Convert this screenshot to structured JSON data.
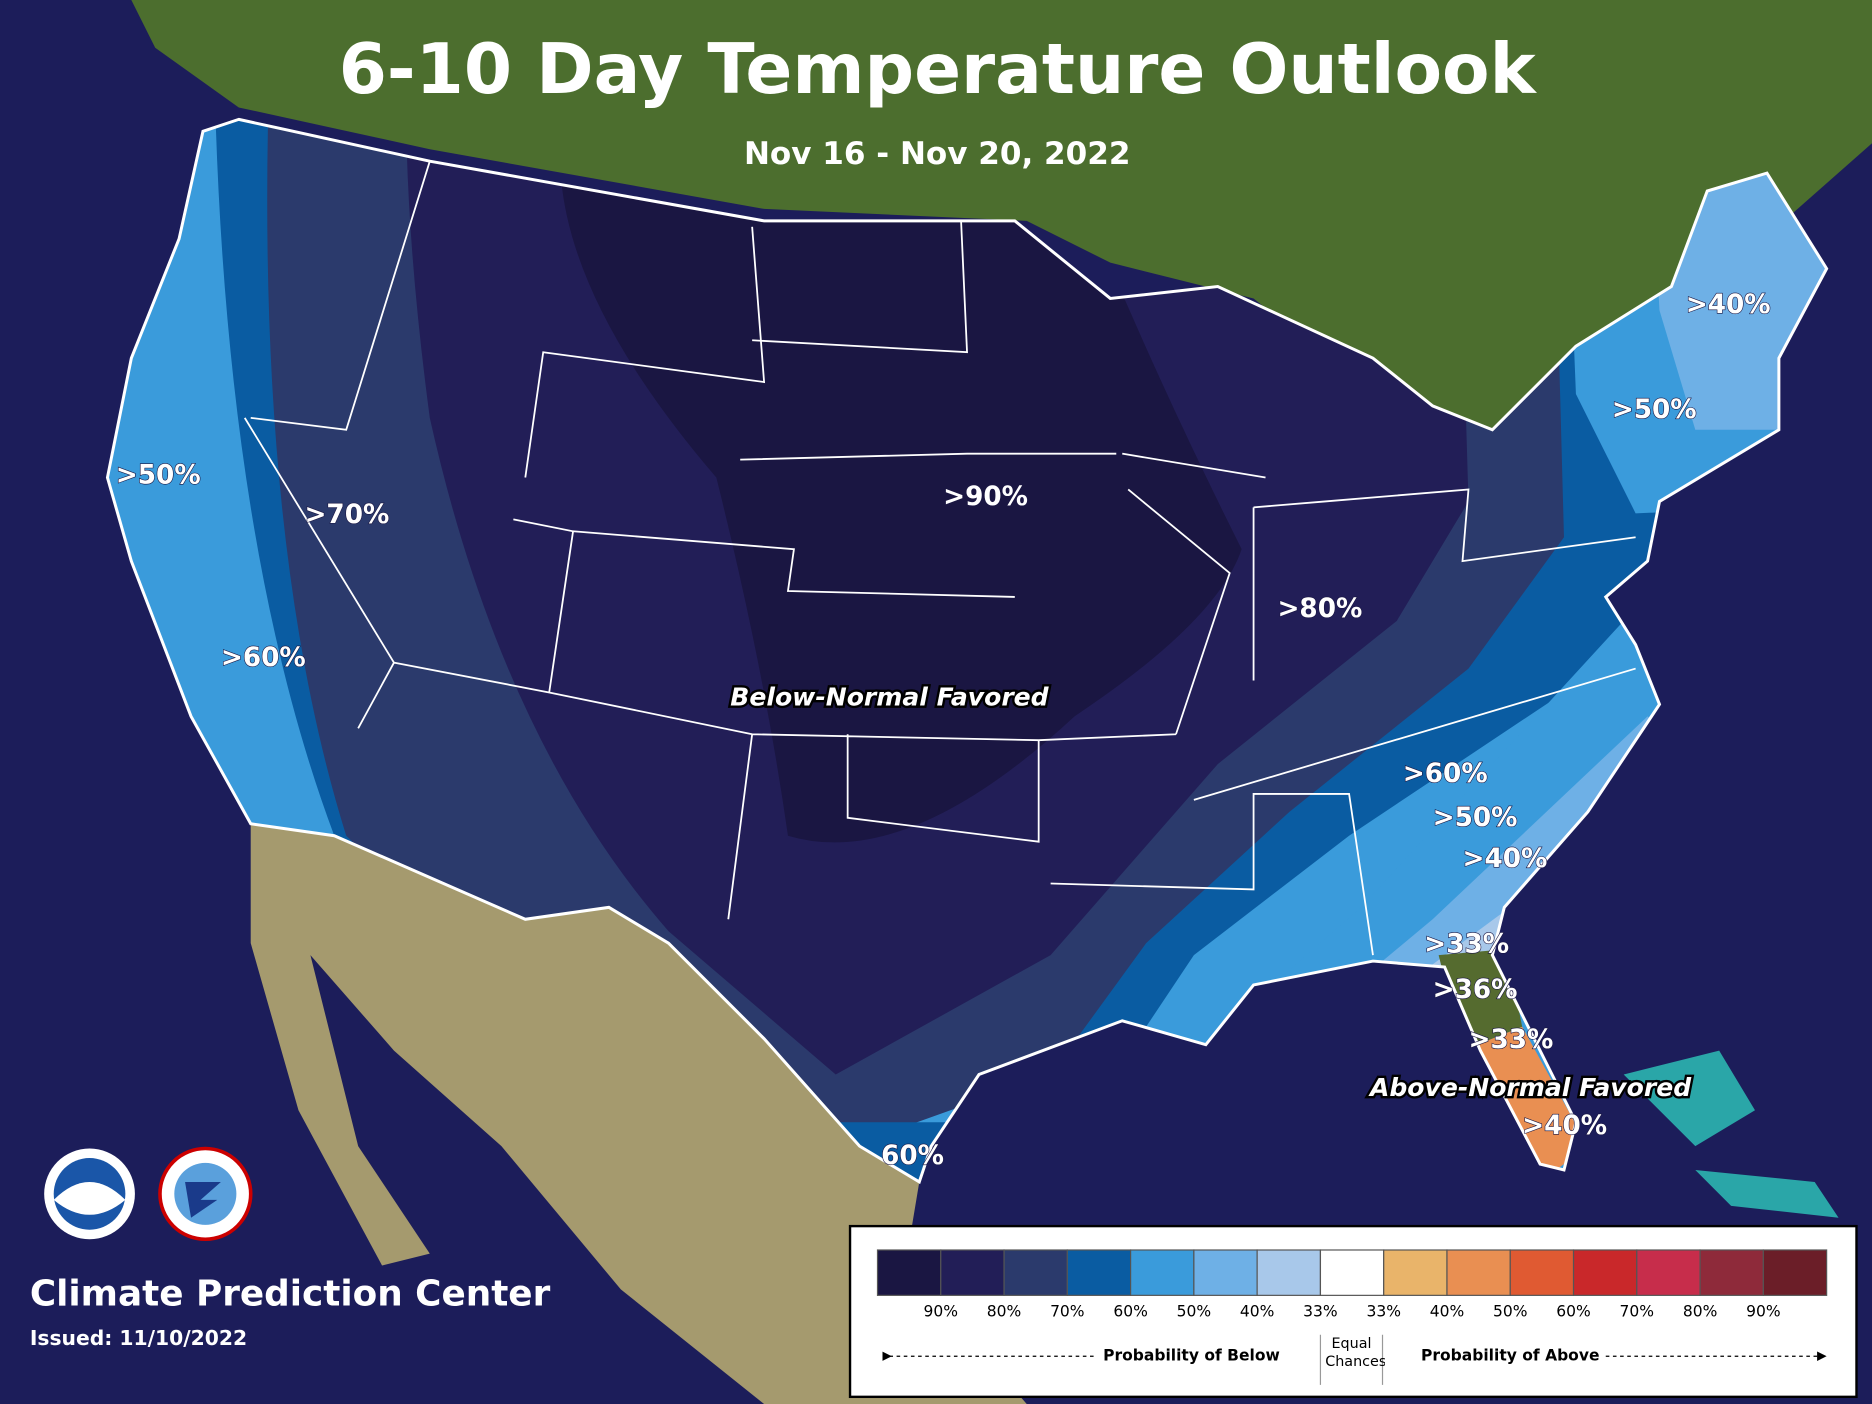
{
  "header": {
    "title": "6-10 Day Temperature Outlook",
    "subtitle": "Nov 16 - Nov 20, 2022"
  },
  "map": {
    "labels": [
      ">50%",
      ">70%",
      ">60%",
      ">90%",
      ">80%",
      "Below-Normal Favored",
      ">60%",
      ">50%",
      ">40%",
      ">33%",
      ">36%",
      ">33%",
      "Above-Normal Favored",
      ">40%",
      ">40%",
      ">50%",
      "60%"
    ]
  },
  "legend": {
    "colors": [
      "#1a1642",
      "#221e57",
      "#2b3a6c",
      "#0a5ca2",
      "#3a9bdb",
      "#6eb0e6",
      "#a8c8ea",
      "#ffffff",
      "#e9b46a",
      "#e98f52",
      "#e05a32",
      "#c9282a",
      "#c72d4b",
      "#8e2a3a",
      "#6b1e28"
    ],
    "below_ticks": [
      "90%",
      "80%",
      "70%",
      "60%",
      "50%",
      "40%",
      "33%"
    ],
    "above_ticks": [
      "33%",
      "40%",
      "50%",
      "60%",
      "70%",
      "80%",
      "90%"
    ],
    "below_caption": "Probability of Below",
    "equal_caption": "Equal Chances",
    "above_caption": "Probability of Above"
  },
  "footer": {
    "org": "Climate Prediction Center",
    "issued": "Issued: 11/10/2022"
  }
}
